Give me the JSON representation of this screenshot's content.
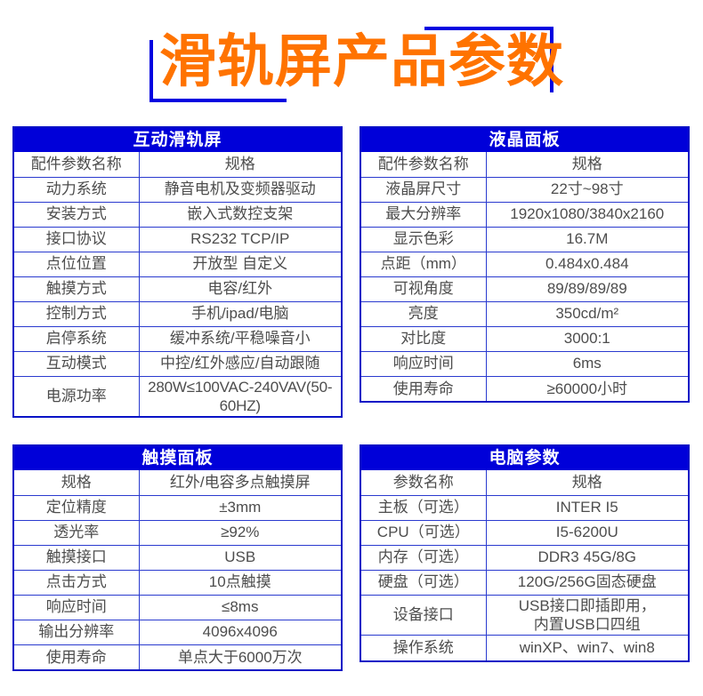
{
  "page": {
    "title": "滑轨屏产品参数",
    "accent_orange": "#FF7300",
    "accent_blue": "#0000D9",
    "grid_blue": "#2A3ACF",
    "text_gray": "#4D4D4D"
  },
  "tables": [
    {
      "title": "互动滑轨屏",
      "rows": [
        {
          "label": "配件参数名称",
          "value": "规格"
        },
        {
          "label": "动力系统",
          "value": "静音电机及变频器驱动"
        },
        {
          "label": "安装方式",
          "value": "嵌入式数控支架"
        },
        {
          "label": "接口协议",
          "value": "RS232 TCP/IP"
        },
        {
          "label": "点位位置",
          "value": "开放型  自定义"
        },
        {
          "label": "触摸方式",
          "value": "电容/红外"
        },
        {
          "label": "控制方式",
          "value": "手机/ipad/电脑"
        },
        {
          "label": "启停系统",
          "value": "缓冲系统/平稳噪音小"
        },
        {
          "label": "互动模式",
          "value": "中控/红外感应/自动跟随"
        },
        {
          "label": "电源功率",
          "value": "280W≤100VAC-240VAV(50-60HZ)"
        }
      ]
    },
    {
      "title": "液晶面板",
      "rows": [
        {
          "label": "配件参数名称",
          "value": "规格"
        },
        {
          "label": "液晶屏尺寸",
          "value": "22寸~98寸"
        },
        {
          "label": "最大分辨率",
          "value": "1920x1080/3840x2160"
        },
        {
          "label": "显示色彩",
          "value": "16.7M"
        },
        {
          "label": "点距（mm）",
          "value": "0.484x0.484"
        },
        {
          "label": "可视角度",
          "value": "89/89/89/89"
        },
        {
          "label": "亮度",
          "value": "350cd/m²"
        },
        {
          "label": "对比度",
          "value": "3000:1"
        },
        {
          "label": "响应时间",
          "value": "6ms"
        },
        {
          "label": "使用寿命",
          "value": "≥60000小时"
        }
      ]
    },
    {
      "title": "触摸面板",
      "rows": [
        {
          "label": "规格",
          "value": "红外/电容多点触摸屏"
        },
        {
          "label": "定位精度",
          "value": "±3mm"
        },
        {
          "label": "透光率",
          "value": "≥92%"
        },
        {
          "label": "触摸接口",
          "value": "USB"
        },
        {
          "label": "点击方式",
          "value": "10点触摸"
        },
        {
          "label": "响应时间",
          "value": "≤8ms"
        },
        {
          "label": "输出分辨率",
          "value": "4096x4096"
        },
        {
          "label": "使用寿命",
          "value": "单点大于6000万次"
        }
      ]
    },
    {
      "title": "电脑参数",
      "rows": [
        {
          "label": "参数名称",
          "value": "规格"
        },
        {
          "label": "主板（可选）",
          "value": "INTER I5"
        },
        {
          "label": "CPU（可选）",
          "value": "I5-6200U"
        },
        {
          "label": "内存（可选）",
          "value": "DDR3  45G/8G"
        },
        {
          "label": "硬盘（可选）",
          "value": "120G/256G固态硬盘"
        },
        {
          "label": "设备接口",
          "value": "USB接口即插即用，\n内置USB口四组"
        },
        {
          "label": "操作系统",
          "value": "winXP、win7、win8"
        }
      ]
    }
  ]
}
